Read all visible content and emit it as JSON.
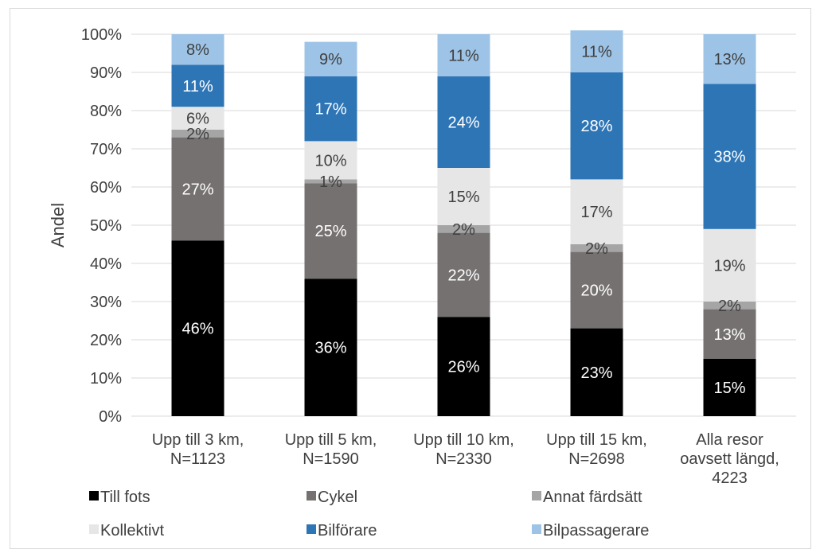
{
  "chart_data": {
    "type": "bar",
    "stacked": true,
    "title": "",
    "ylabel": "Andel",
    "xlabel": "",
    "ylim": [
      0,
      100
    ],
    "yticks": [
      "0%",
      "10%",
      "20%",
      "30%",
      "40%",
      "50%",
      "60%",
      "70%",
      "80%",
      "90%",
      "100%"
    ],
    "categories": [
      [
        "Upp till 3 km,",
        "N=1123"
      ],
      [
        "Upp till 5 km,",
        "N=1590"
      ],
      [
        "Upp till 10 km,",
        "N=2330"
      ],
      [
        "Upp till 15 km,",
        "N=2698"
      ],
      [
        "Alla resor",
        "oavsett längd,",
        "4223"
      ]
    ],
    "series": [
      {
        "name": "Till fots",
        "color": "#000000",
        "label_color": "#ffffff",
        "values": [
          46,
          36,
          26,
          23,
          15
        ]
      },
      {
        "name": "Cykel",
        "color": "#767171",
        "label_color": "#ffffff",
        "values": [
          27,
          25,
          22,
          20,
          13
        ]
      },
      {
        "name": "Annat färdsätt",
        "color": "#a5a5a5",
        "label_color": "#404040",
        "values": [
          2,
          1,
          2,
          2,
          2
        ]
      },
      {
        "name": "Kollektivt",
        "color": "#e7e6e6",
        "label_color": "#404040",
        "values": [
          6,
          10,
          15,
          17,
          19
        ]
      },
      {
        "name": "Bilförare",
        "color": "#2e75b6",
        "label_color": "#ffffff",
        "values": [
          11,
          17,
          24,
          28,
          38
        ]
      },
      {
        "name": "Bilpassagerare",
        "color": "#9dc3e6",
        "label_color": "#404040",
        "values": [
          8,
          9,
          11,
          11,
          13
        ]
      }
    ],
    "value_suffix": "%",
    "grid": true,
    "legend_position": "bottom"
  }
}
